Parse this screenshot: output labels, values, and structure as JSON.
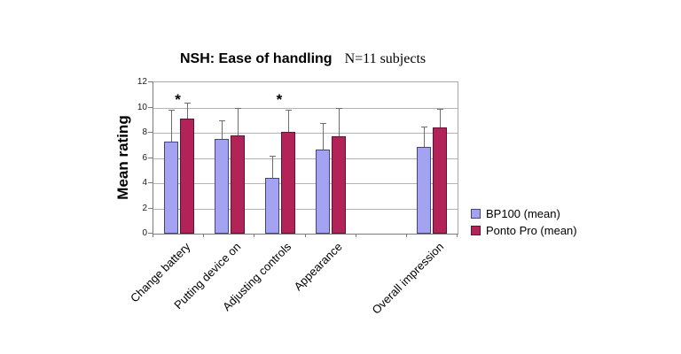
{
  "chart_data": {
    "type": "bar",
    "title": "NSH: Ease of handling",
    "subtitle": "N=11 subjects",
    "ylabel": "Mean rating",
    "xlabel": "",
    "ylim": [
      0,
      12
    ],
    "yticks": [
      0,
      2,
      4,
      6,
      8,
      10,
      12
    ],
    "grid": true,
    "legend_position": "right",
    "categories": [
      "Change battery",
      "Putting device on",
      "Adjusting controls",
      "Appearance",
      "",
      "Overall impression"
    ],
    "series": [
      {
        "name": "BP100 (mean)",
        "fill": "#a3a3f2",
        "border": "#44447e",
        "values": [
          7.3,
          7.5,
          4.4,
          6.7,
          null,
          6.9
        ],
        "error_top": [
          9.8,
          9.0,
          6.2,
          8.8,
          null,
          8.5
        ]
      },
      {
        "name": "Ponto Pro (mean)",
        "fill": "#b22358",
        "border": "#5e1238",
        "values": [
          9.1,
          7.8,
          8.1,
          7.7,
          null,
          8.4
        ],
        "error_top": [
          10.4,
          10.0,
          9.8,
          10.0,
          null,
          9.9
        ]
      }
    ],
    "annotations": [
      {
        "text": "*",
        "category_index": 0,
        "y": 10.2
      },
      {
        "text": "*",
        "category_index": 2,
        "y": 10.2
      }
    ],
    "colors": {
      "grid": "#b4b4b4",
      "axis": "#7a7a7a",
      "error_bar": "#6e6e6e",
      "background": "#ffffff"
    }
  }
}
